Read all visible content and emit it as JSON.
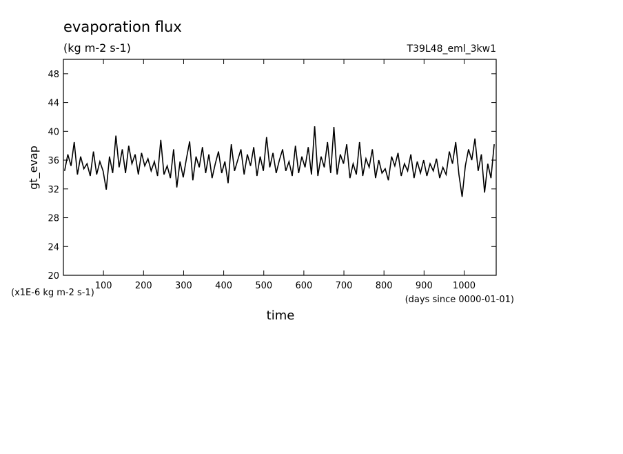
{
  "chart_data": {
    "type": "line",
    "title": "evaporation flux",
    "subtitle": "(kg m-2 s-1)",
    "run_label": "T39L48_eml_3kw1",
    "y_label": "gt_evap",
    "y_unit_label": "(x1E-6 kg m-2 s-1)",
    "x_unit_label": "(days since 0000-01-01)",
    "x_label": "time",
    "xlim": [
      0,
      1080
    ],
    "ylim": [
      20,
      50
    ],
    "xticks": [
      100,
      200,
      300,
      400,
      500,
      600,
      700,
      800,
      900,
      1000
    ],
    "yticks": [
      20,
      24,
      28,
      32,
      36,
      40,
      44,
      48
    ],
    "x": [
      3,
      11,
      19,
      27,
      35,
      43,
      51,
      59,
      67,
      75,
      83,
      91,
      99,
      107,
      115,
      123,
      131,
      139,
      147,
      155,
      163,
      171,
      179,
      187,
      195,
      203,
      211,
      219,
      227,
      235,
      243,
      251,
      259,
      267,
      275,
      283,
      291,
      299,
      307,
      315,
      323,
      331,
      339,
      347,
      355,
      363,
      371,
      379,
      387,
      395,
      403,
      411,
      419,
      427,
      435,
      443,
      451,
      459,
      467,
      475,
      483,
      491,
      499,
      507,
      515,
      523,
      531,
      539,
      547,
      555,
      563,
      571,
      579,
      587,
      595,
      603,
      611,
      619,
      627,
      635,
      643,
      651,
      659,
      667,
      675,
      683,
      691,
      699,
      707,
      715,
      723,
      731,
      739,
      747,
      755,
      763,
      771,
      779,
      787,
      795,
      803,
      811,
      819,
      827,
      835,
      843,
      851,
      859,
      867,
      875,
      883,
      891,
      899,
      907,
      915,
      923,
      931,
      939,
      947,
      955,
      963,
      971,
      979,
      987,
      995,
      1003,
      1011,
      1019,
      1027,
      1035,
      1043,
      1051,
      1059,
      1067,
      1075
    ],
    "series": [
      {
        "color": "#000000",
        "values": [
          34.5,
          36.8,
          35.2,
          38.5,
          34.0,
          36.5,
          34.8,
          35.5,
          33.8,
          37.2,
          34.0,
          35.8,
          34.5,
          31.9,
          36.5,
          34.2,
          39.4,
          35.0,
          37.5,
          34.2,
          38.0,
          35.5,
          36.8,
          34.0,
          37.0,
          35.2,
          36.2,
          34.5,
          35.8,
          33.8,
          38.8,
          34.0,
          35.2,
          33.5,
          37.5,
          32.2,
          35.8,
          33.6,
          36.2,
          38.6,
          33.2,
          36.5,
          35.0,
          37.8,
          34.2,
          36.8,
          33.5,
          35.5,
          37.2,
          34.2,
          35.8,
          32.8,
          38.2,
          34.5,
          36.0,
          37.5,
          34.0,
          36.8,
          35.2,
          37.8,
          33.8,
          36.5,
          34.5,
          39.2,
          35.0,
          37.0,
          34.2,
          36.0,
          37.5,
          34.5,
          35.8,
          33.8,
          38.0,
          34.2,
          36.5,
          35.0,
          37.8,
          34.0,
          40.7,
          33.8,
          36.5,
          35.0,
          38.5,
          34.2,
          40.6,
          34.0,
          36.8,
          35.5,
          38.2,
          33.5,
          35.5,
          34.0,
          38.5,
          33.8,
          36.2,
          35.0,
          37.5,
          33.5,
          36.0,
          34.2,
          34.8,
          33.2,
          36.5,
          35.2,
          37.0,
          33.8,
          35.5,
          34.5,
          36.8,
          33.5,
          35.8,
          34.2,
          36.0,
          33.8,
          35.5,
          34.5,
          36.2,
          33.5,
          35.0,
          34.0,
          37.2,
          35.5,
          38.5,
          34.0,
          30.9,
          35.2,
          37.5,
          36.0,
          39.0,
          34.5,
          36.8,
          31.5,
          35.5,
          33.5,
          38.2
        ]
      }
    ]
  }
}
